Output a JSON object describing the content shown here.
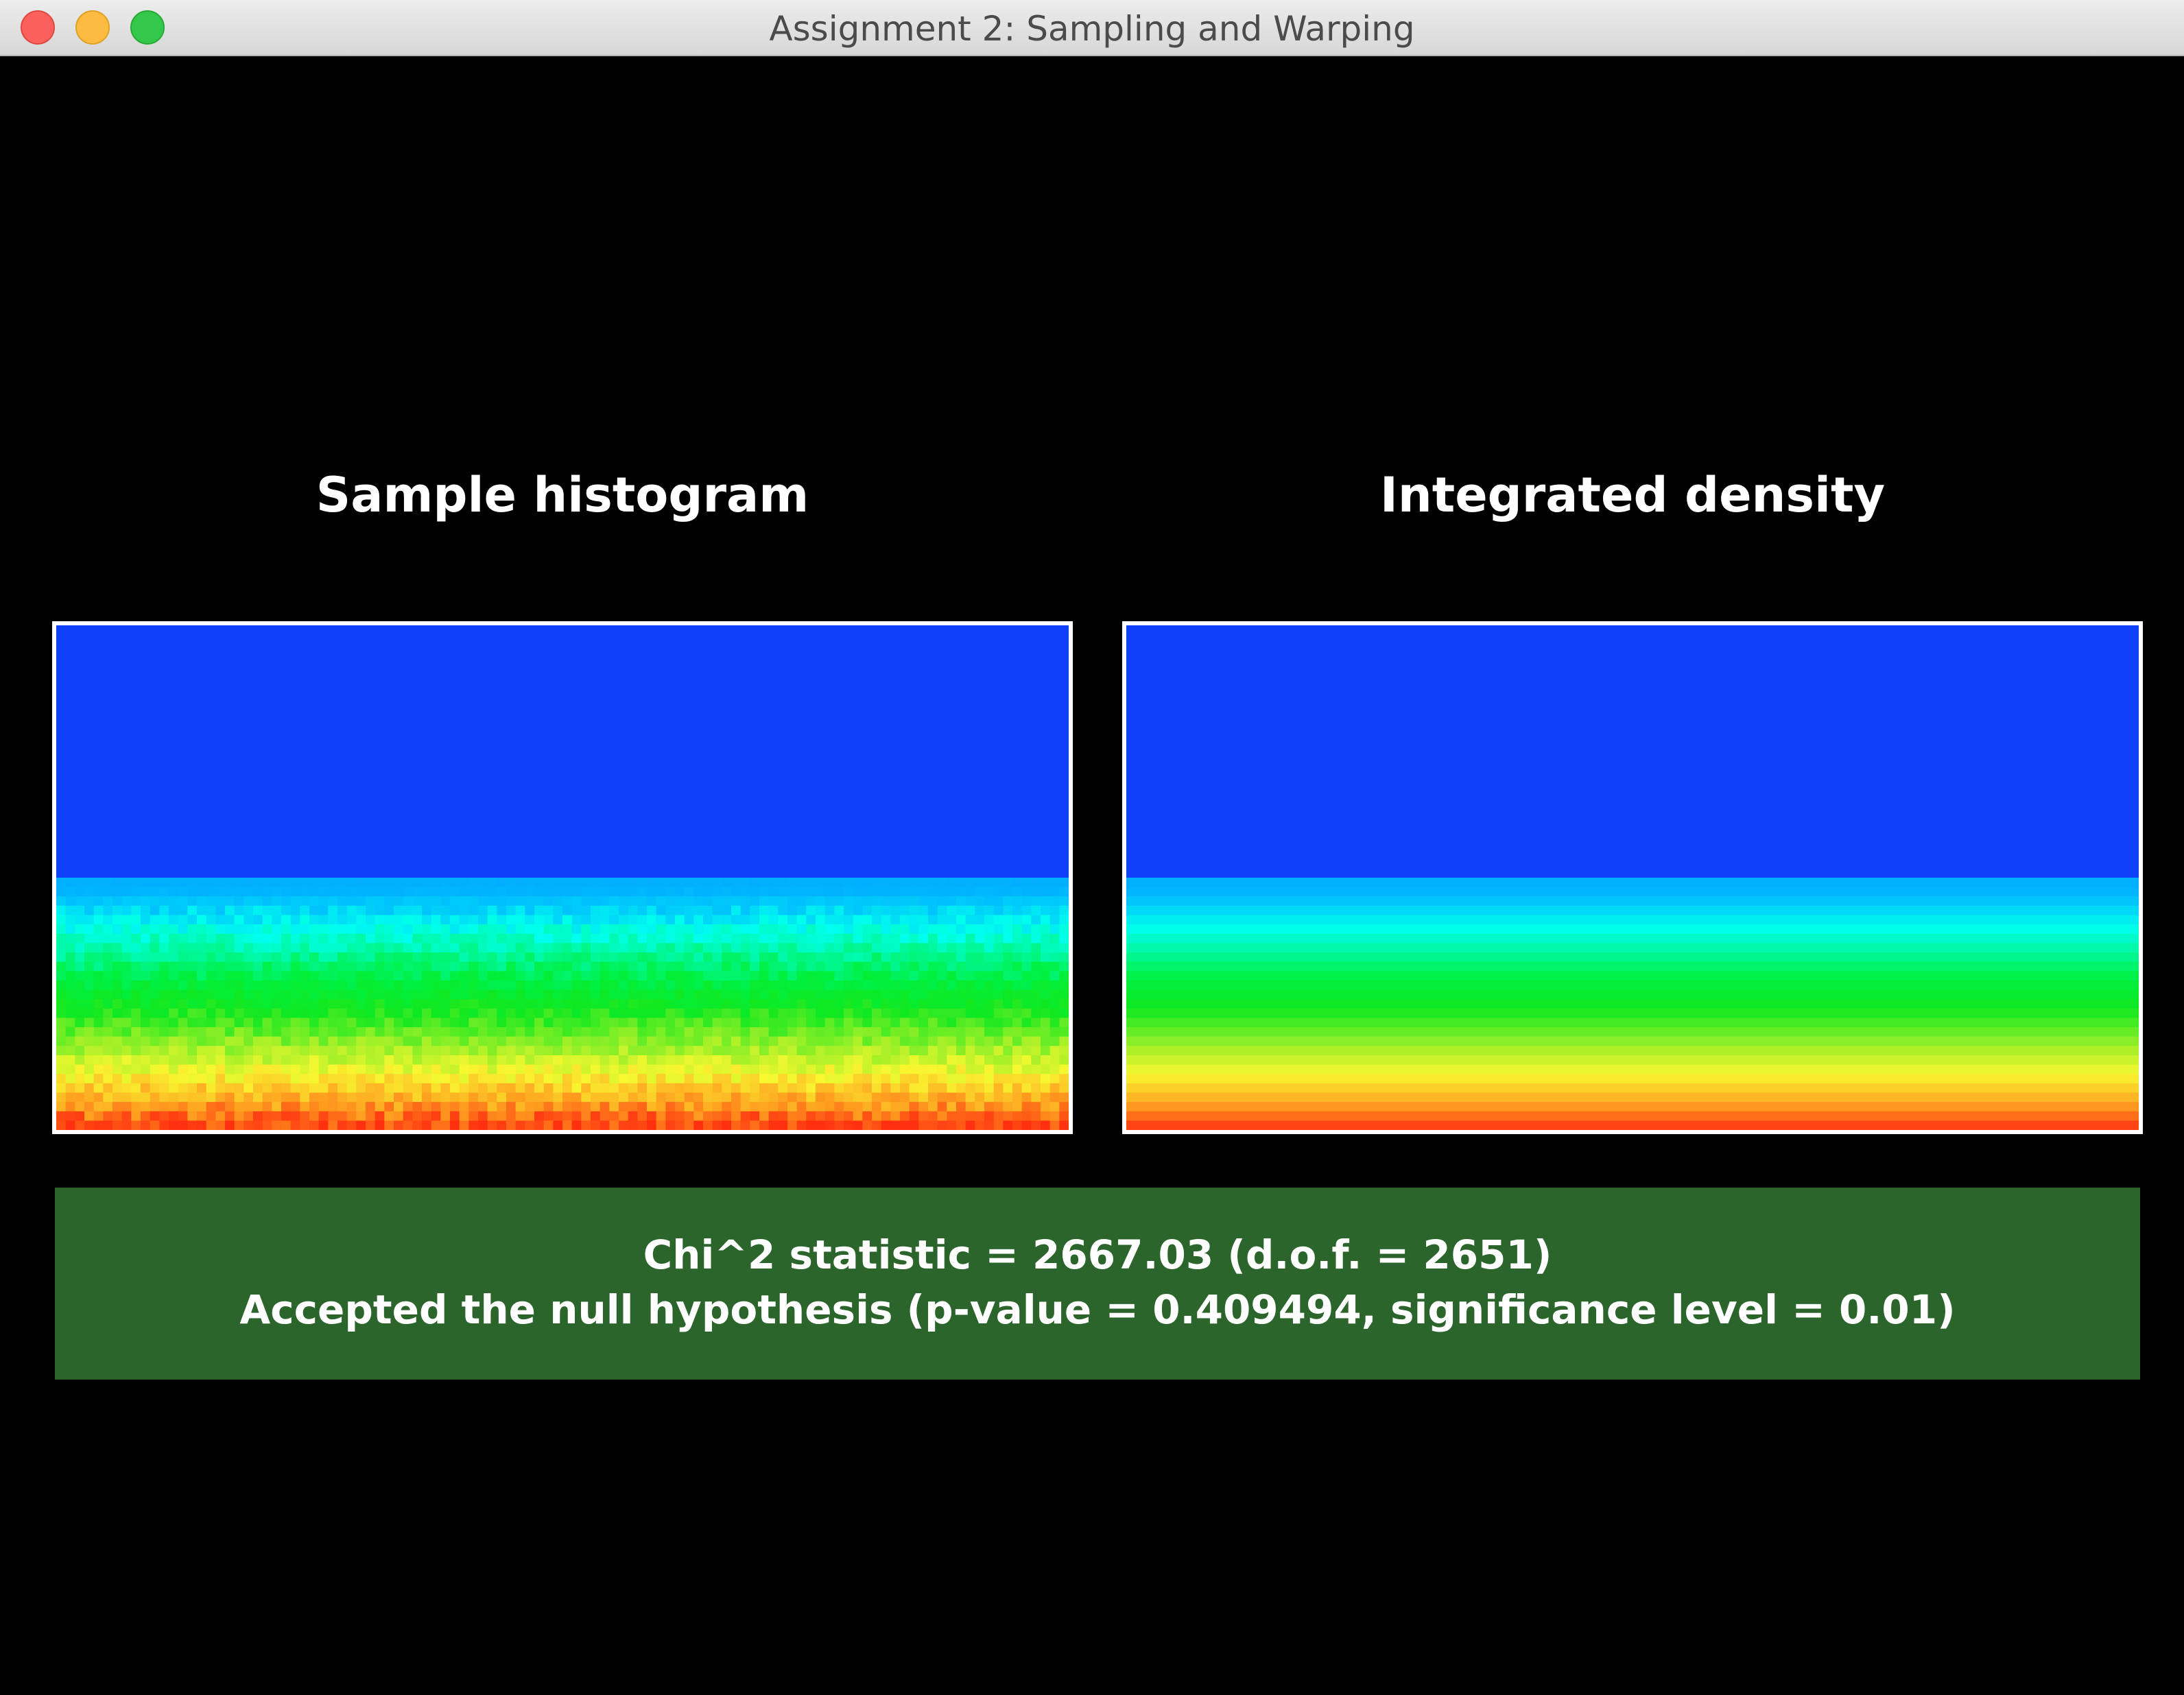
{
  "window": {
    "title": "Assignment 2: Sampling and Warping",
    "controls": [
      {
        "name": "close",
        "color": "#fc605c"
      },
      {
        "name": "minimize",
        "color": "#fdbc40"
      },
      {
        "name": "zoom",
        "color": "#34c84a"
      }
    ]
  },
  "panels": {
    "histogram": {
      "title": "Sample histogram"
    },
    "density": {
      "title": "Integrated density"
    }
  },
  "chart_data": [
    {
      "type": "heatmap",
      "title": "Sample histogram",
      "grid": false,
      "colormap": [
        "#0f3ff8",
        "#00b4ff",
        "#00ffee",
        "#00f040",
        "#10e820",
        "#a8f028",
        "#f8f830",
        "#ffa020",
        "#ff3010"
      ],
      "note_values": "relative density rising from 0 (top rows) to 1 (bottom row), noisy per cell",
      "rows": 54,
      "columns": 108
    },
    {
      "type": "heatmap",
      "title": "Integrated density",
      "grid": false,
      "colormap": [
        "#0f3ff8",
        "#00b4ff",
        "#00ffee",
        "#00f040",
        "#10e820",
        "#a8f028",
        "#f8f830",
        "#ffa020",
        "#ff3010"
      ],
      "rows": 54,
      "columns": 108
    }
  ],
  "results": {
    "chi2_line": "Chi^2 statistic = 2667.03 (d.o.f. = 2651)",
    "hypothesis_line": "Accepted the null hypothesis (p-value = 0.409494, significance level = 0.01)",
    "status_color": "#2b652b"
  }
}
